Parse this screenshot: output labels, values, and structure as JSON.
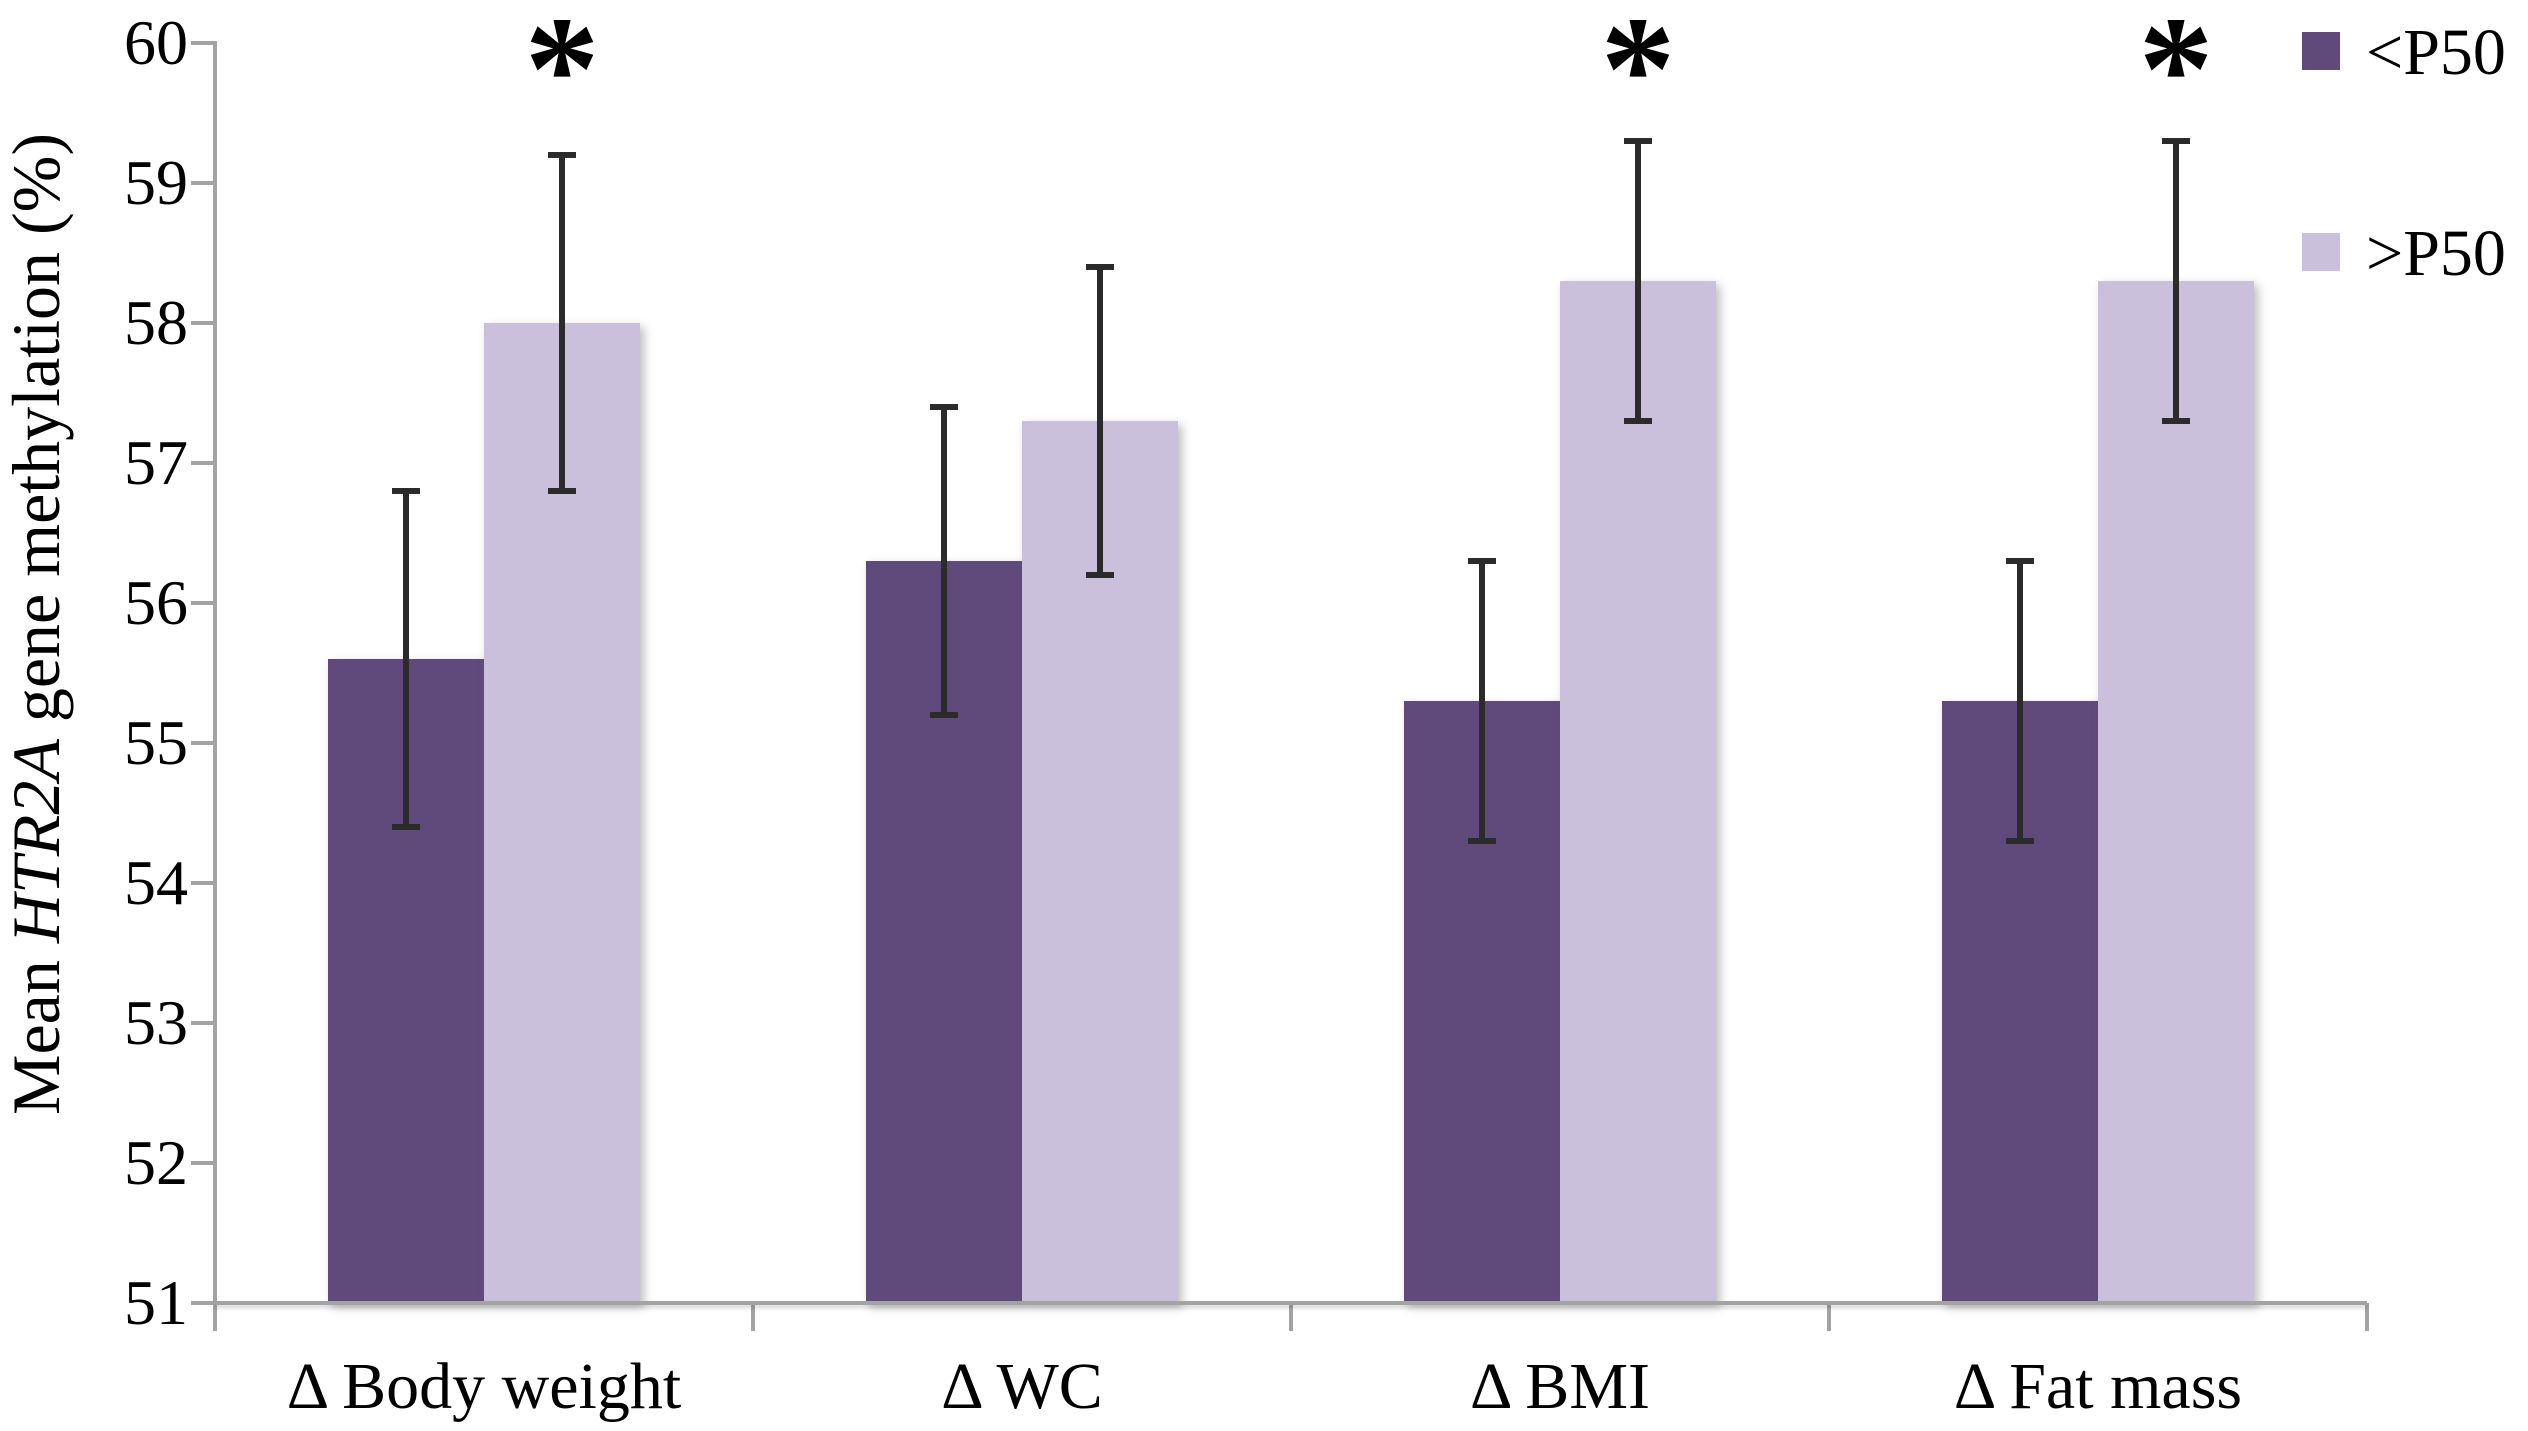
{
  "chart_data": {
    "type": "bar",
    "title": "",
    "ylabel_prefix": "Mean ",
    "ylabel_italic": "HTR2A",
    "ylabel_suffix": " gene methylation (%)",
    "categories": [
      "Δ Body weight",
      "Δ WC",
      "Δ BMI",
      "Δ Fat mass"
    ],
    "series": [
      {
        "name": "<P50",
        "color": "#604a7b",
        "values": [
          55.6,
          56.3,
          55.3,
          55.3
        ],
        "errors": [
          1.2,
          1.1,
          1.0,
          1.0
        ]
      },
      {
        "name": ">P50",
        "color": "#cbc0dc",
        "values": [
          58.0,
          57.3,
          58.3,
          58.3
        ],
        "errors": [
          1.2,
          1.1,
          1.0,
          1.0
        ]
      }
    ],
    "ylim": [
      51,
      60
    ],
    "yticks": [
      51,
      52,
      53,
      54,
      55,
      56,
      57,
      58,
      59,
      60
    ],
    "significant_categories": [
      0,
      2,
      3
    ],
    "significance_marker": "*",
    "legend_position": "top-right",
    "grid": false,
    "axis_color": "#a3a3a3",
    "error_bar_color": "#2b2b2b"
  }
}
